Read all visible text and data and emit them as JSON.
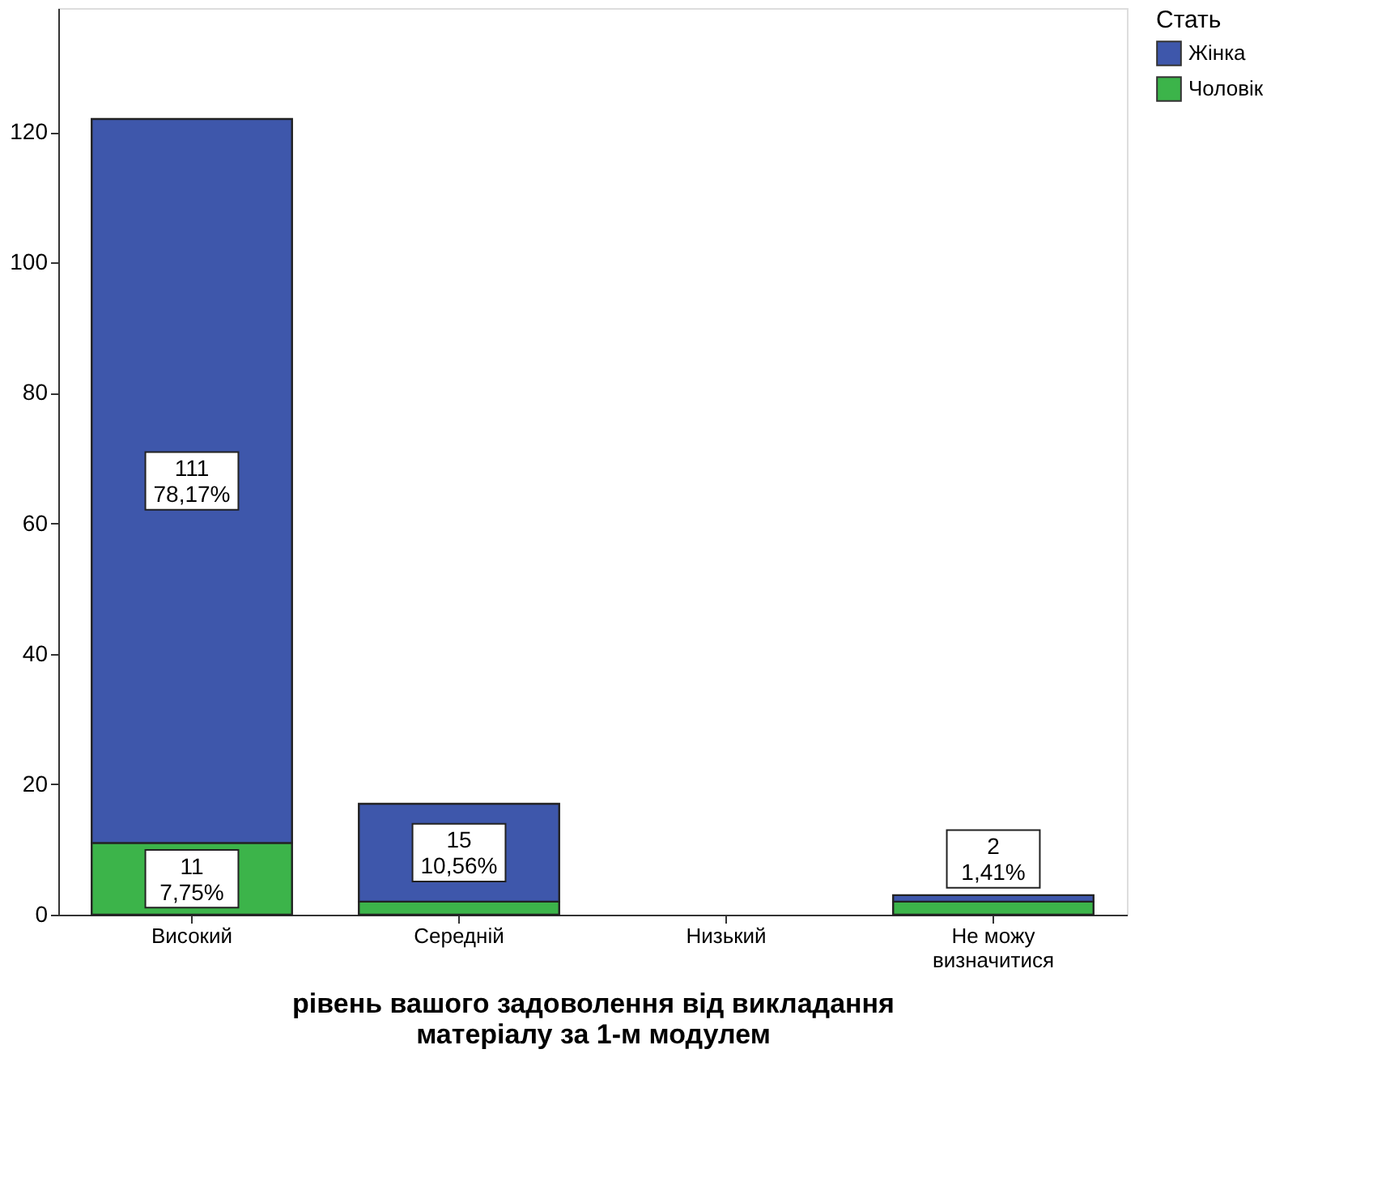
{
  "chart_data": {
    "type": "bar",
    "stacked": true,
    "xlabel": "рівень вашого задоволення від викладання матеріалу за 1-м модулем",
    "legend_title": "Стать",
    "categories": [
      "Високий",
      "Середній",
      "Низький",
      "Не можу визначитися"
    ],
    "series": [
      {
        "name": "Чоловік",
        "color": "#3cb44a",
        "values": [
          11,
          2,
          null,
          2
        ],
        "value_labels": [
          "11\n7,75%",
          null,
          null,
          "2\n1,41%"
        ]
      },
      {
        "name": "Жінка",
        "color": "#3e57ab",
        "values": [
          111,
          15,
          null,
          1
        ],
        "value_labels": [
          "111\n78,17%",
          "15\n10,56%",
          null,
          null
        ]
      }
    ],
    "ylim": [
      0,
      139
    ],
    "yticks": [
      0,
      20,
      40,
      60,
      80,
      100,
      120
    ],
    "grid": false,
    "legend": "top right"
  }
}
